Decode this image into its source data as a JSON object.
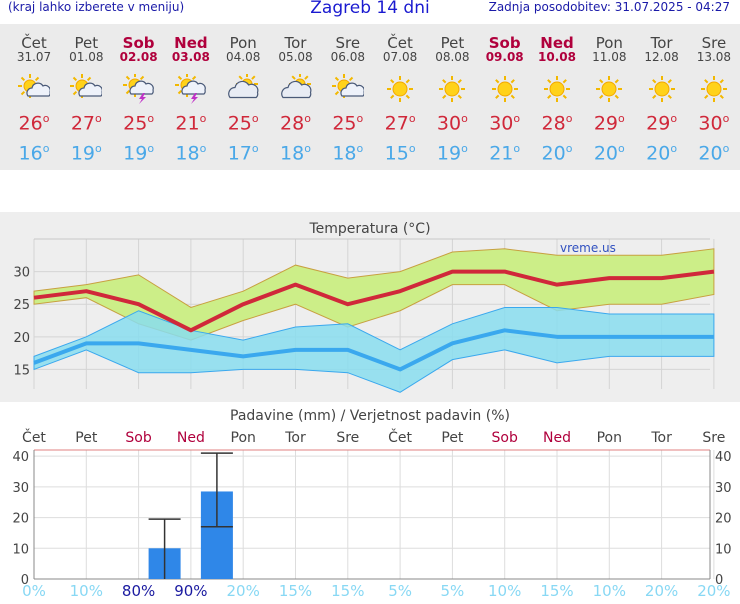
{
  "header": {
    "left_note": "(kraj lahko izberete v meniju)",
    "title": "Zagreb 14 dni",
    "updated": "Zadnja posodobitev: 31.07.2025 - 04:27"
  },
  "forecast": [
    {
      "day": "Čet",
      "date": "31.07",
      "weekend": false,
      "icon": "sun-cloud-icon",
      "max": "26",
      "min": "16"
    },
    {
      "day": "Pet",
      "date": "01.08",
      "weekend": false,
      "icon": "sun-cloud-icon",
      "max": "27",
      "min": "19"
    },
    {
      "day": "Sob",
      "date": "02.08",
      "weekend": true,
      "icon": "thunder-icon",
      "max": "25",
      "min": "19"
    },
    {
      "day": "Ned",
      "date": "03.08",
      "weekend": true,
      "icon": "thunder-icon",
      "max": "21",
      "min": "18"
    },
    {
      "day": "Pon",
      "date": "04.08",
      "weekend": false,
      "icon": "cloudy-icon",
      "max": "25",
      "min": "17"
    },
    {
      "day": "Tor",
      "date": "05.08",
      "weekend": false,
      "icon": "cloudy-icon",
      "max": "28",
      "min": "18"
    },
    {
      "day": "Sre",
      "date": "06.08",
      "weekend": false,
      "icon": "sun-cloud-icon",
      "max": "25",
      "min": "18"
    },
    {
      "day": "Čet",
      "date": "07.08",
      "weekend": false,
      "icon": "sun-icon",
      "max": "27",
      "min": "15"
    },
    {
      "day": "Pet",
      "date": "08.08",
      "weekend": false,
      "icon": "sun-icon",
      "max": "30",
      "min": "19"
    },
    {
      "day": "Sob",
      "date": "09.08",
      "weekend": true,
      "icon": "sun-icon",
      "max": "30",
      "min": "21"
    },
    {
      "day": "Ned",
      "date": "10.08",
      "weekend": true,
      "icon": "sun-icon",
      "max": "28",
      "min": "20"
    },
    {
      "day": "Pon",
      "date": "11.08",
      "weekend": false,
      "icon": "sun-icon",
      "max": "29",
      "min": "20"
    },
    {
      "day": "Tor",
      "date": "12.08",
      "weekend": false,
      "icon": "sun-icon",
      "max": "29",
      "min": "20"
    },
    {
      "day": "Sre",
      "date": "13.08",
      "weekend": false,
      "icon": "sun-icon",
      "max": "30",
      "min": "20"
    }
  ],
  "degree_symbol": "o",
  "colors": {
    "max_line": "#d0283a",
    "min_line": "#3aa8ee",
    "max_band": "#ccee88",
    "min_band": "#88ddee",
    "overlap_band": "#88cc66",
    "bar": "#2f87e8",
    "weekend": "#b0003c"
  },
  "chart_data": [
    {
      "type": "line",
      "title": "Temperatura (°C)",
      "watermark": "vreme.us",
      "x": [
        0,
        1,
        2,
        3,
        4,
        5,
        6,
        7,
        8,
        9,
        10,
        11,
        12,
        13
      ],
      "ylim": [
        12,
        35
      ],
      "yticks": [
        15,
        20,
        25,
        30
      ],
      "grid": true,
      "series": [
        {
          "name": "max",
          "values": [
            26,
            27,
            25,
            21,
            25,
            28,
            25,
            27,
            30,
            30,
            28,
            29,
            29,
            30
          ],
          "band_low": [
            25,
            26,
            22,
            19.5,
            22.5,
            25,
            21.5,
            24,
            28,
            28,
            24,
            25,
            25,
            26.5
          ],
          "band_high": [
            27,
            28,
            29.5,
            24.5,
            27,
            31,
            29,
            30,
            33,
            33.5,
            32.5,
            32.5,
            32.5,
            33.5
          ]
        },
        {
          "name": "min",
          "values": [
            16,
            19,
            19,
            18,
            17,
            18,
            18,
            15,
            19,
            21,
            20,
            20,
            20,
            20
          ],
          "band_low": [
            15,
            18,
            14.5,
            14.5,
            15,
            15,
            14.5,
            11.5,
            16.5,
            18,
            16,
            17,
            17,
            17
          ],
          "band_high": [
            17,
            20,
            24,
            21,
            19.5,
            21.5,
            22,
            18,
            22,
            24.5,
            24.5,
            23.5,
            23.5,
            23.5
          ]
        }
      ]
    },
    {
      "type": "bar",
      "title": "Padavine (mm) / Verjetnost padavin (%)",
      "categories": [
        "Čet",
        "Pet",
        "Sob",
        "Ned",
        "Pon",
        "Tor",
        "Sre",
        "Čet",
        "Pet",
        "Sob",
        "Ned",
        "Pon",
        "Tor",
        "Sre"
      ],
      "weekend": [
        false,
        false,
        true,
        true,
        false,
        false,
        false,
        false,
        false,
        true,
        true,
        false,
        false,
        false
      ],
      "values": [
        0,
        0,
        10,
        28.5,
        0,
        0,
        0,
        0,
        0,
        0,
        0,
        0,
        0,
        0
      ],
      "error_low": [
        null,
        null,
        0,
        17,
        null,
        null,
        null,
        null,
        null,
        null,
        null,
        null,
        null,
        null
      ],
      "error_high": [
        null,
        null,
        19.5,
        41,
        null,
        null,
        null,
        null,
        null,
        null,
        null,
        null,
        null,
        null
      ],
      "probability": [
        "0%",
        "10%",
        "80%",
        "90%",
        "20%",
        "15%",
        "15%",
        "5%",
        "5%",
        "10%",
        "15%",
        "10%",
        "20%",
        "20%"
      ],
      "probability_highlight": [
        false,
        false,
        true,
        true,
        false,
        false,
        false,
        false,
        false,
        false,
        false,
        false,
        false,
        false
      ],
      "ylim": [
        0,
        42
      ],
      "yticks": [
        0,
        10,
        20,
        30,
        40
      ],
      "grid": true
    }
  ]
}
